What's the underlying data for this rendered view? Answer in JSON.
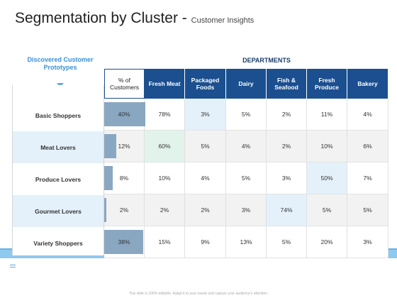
{
  "title": {
    "main": "Segmentation by Cluster",
    "separator": " - ",
    "sub": "Customer Insights"
  },
  "prototypes_header": "Discovered Customer Prototypes",
  "departments_header": "DEPARTMENTS",
  "columns": [
    "% of Customers",
    "Fresh Meat",
    "Packaged Foods",
    "Dairy",
    "Fish & Seafood",
    "Fresh Produce",
    "Bakery"
  ],
  "rows": [
    {
      "label": "Basic Shoppers",
      "pct": "40%",
      "pct_fraction": 0.4,
      "cells": [
        "78%",
        "3%",
        "5%",
        "2%",
        "11%",
        "4%"
      ]
    },
    {
      "label": "Meat Lovers",
      "pct": "12%",
      "pct_fraction": 0.12,
      "cells": [
        "60%",
        "5%",
        "4%",
        "2%",
        "10%",
        "6%"
      ]
    },
    {
      "label": "Produce Lovers",
      "pct": "8%",
      "pct_fraction": 0.08,
      "cells": [
        "10%",
        "4%",
        "5%",
        "3%",
        "50%",
        "7%"
      ]
    },
    {
      "label": "Gourmet Lovers",
      "pct": "2%",
      "pct_fraction": 0.02,
      "cells": [
        "2%",
        "2%",
        "3%",
        "74%",
        "5%",
        "5%"
      ]
    },
    {
      "label": "Variety Shoppers",
      "pct": "38%",
      "pct_fraction": 0.38,
      "cells": [
        "15%",
        "9%",
        "13%",
        "5%",
        "20%",
        "3%"
      ]
    }
  ],
  "highlights": [
    {
      "row": 0,
      "col": 2,
      "color": "#e4f1fb"
    },
    {
      "row": 1,
      "col": 1,
      "color": "#e2f3ec"
    },
    {
      "row": 2,
      "col": 5,
      "color": "#e4f1fb"
    },
    {
      "row": 3,
      "col": 4,
      "color": "#e4f1fb"
    }
  ],
  "colors": {
    "header_blue": "#1b4f8f",
    "accent_blue": "#3a8fd6",
    "bar": "#8aa7c2",
    "band": "#8ec9ef"
  },
  "footer_note": "This slide is 100% editable. Adapt it to your needs and capture your audience's attention."
}
